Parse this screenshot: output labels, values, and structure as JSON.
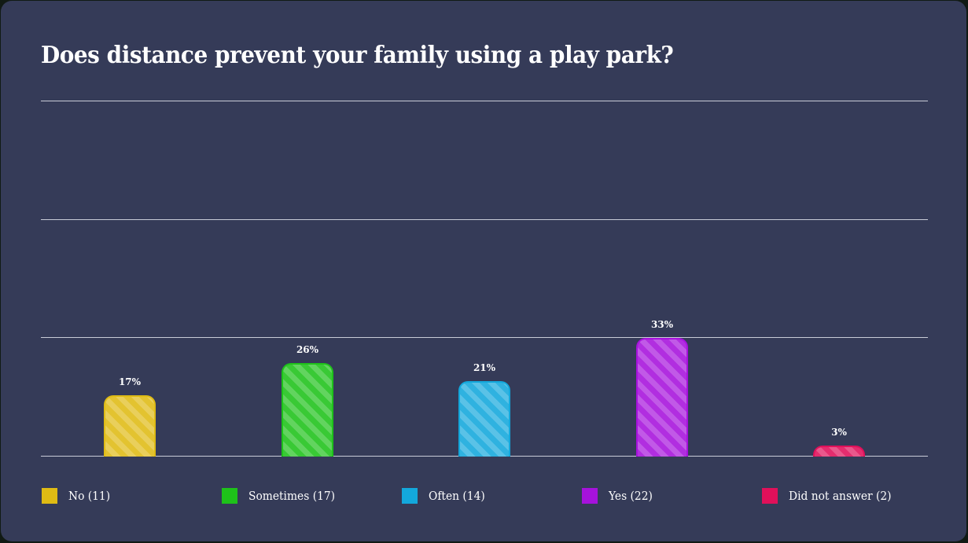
{
  "title": "Does distance prevent your family using a play park?",
  "chart_data": {
    "type": "bar",
    "title": "Does distance prevent your family using a play park?",
    "categories": [
      "No",
      "Sometimes",
      "Often",
      "Yes",
      "Did not answer"
    ],
    "values": [
      17,
      26,
      21,
      33,
      3
    ],
    "counts": [
      11,
      17,
      14,
      22,
      2
    ],
    "value_labels": [
      "17%",
      "26%",
      "21%",
      "33%",
      "3%"
    ],
    "colors": [
      "#dfbb14",
      "#1ec21a",
      "#13a8dc",
      "#a612dc",
      "#e0105a"
    ],
    "xlabel": "",
    "ylabel": "",
    "ylim": [
      0,
      99
    ],
    "grid": true,
    "gridlines_at": [
      0,
      33,
      66,
      99
    ],
    "legend_position": "bottom",
    "bar_style": "diagonal-striped"
  },
  "legend": [
    {
      "label": "No (11)"
    },
    {
      "label": "Sometimes (17)"
    },
    {
      "label": "Often (14)"
    },
    {
      "label": "Yes (22)"
    },
    {
      "label": "Did not answer (2)"
    }
  ]
}
